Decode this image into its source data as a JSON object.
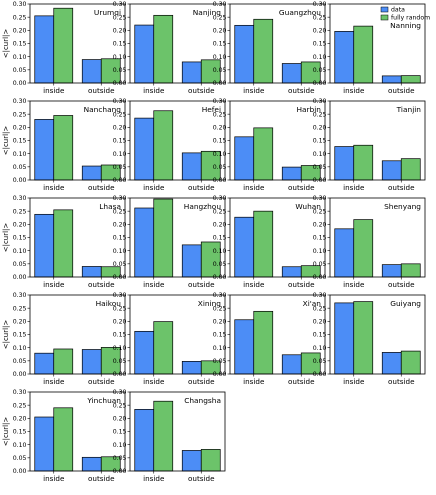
{
  "chart_data": {
    "type": "bar",
    "ylabel": "<|curl|>",
    "categories": [
      "inside",
      "outside"
    ],
    "series_names": [
      "data",
      "fully random"
    ],
    "colors": {
      "data": "#4C8DF6",
      "fully random": "#6CC36A"
    },
    "legend_location": "top-right of Nanning panel",
    "y_tick_label_columns": "left column only",
    "panels": [
      {
        "title": "Urumqi",
        "ylim": [
          0,
          0.3
        ],
        "yticks": [
          "0.00",
          "0.05",
          "0.10",
          "0.15",
          "0.20",
          "0.25",
          "0.30"
        ],
        "data": [
          0.255,
          0.089
        ],
        "fully_random": [
          0.284,
          0.092
        ]
      },
      {
        "title": "Nanjing",
        "ylim": [
          0,
          0.3
        ],
        "yticks": [
          "0.00",
          "0.05",
          "0.10",
          "0.15",
          "0.20",
          "0.25",
          "0.30"
        ],
        "data": [
          0.22,
          0.08
        ],
        "fully_random": [
          0.257,
          0.088
        ]
      },
      {
        "title": "Guangzhou",
        "ylim": [
          0,
          0.3
        ],
        "yticks": [
          "0.00",
          "0.05",
          "0.10",
          "0.15",
          "0.20",
          "0.25",
          "0.30"
        ],
        "data": [
          0.219,
          0.074
        ],
        "fully_random": [
          0.242,
          0.08
        ]
      },
      {
        "title": "Nanning",
        "ylim": [
          0,
          0.3
        ],
        "yticks": [
          "0.00",
          "0.05",
          "0.10",
          "0.15",
          "0.20",
          "0.25",
          "0.30"
        ],
        "data": [
          0.196,
          0.027
        ],
        "fully_random": [
          0.216,
          0.028
        ],
        "legend": true
      },
      {
        "title": "Nanchang",
        "ylim": [
          0,
          0.3
        ],
        "yticks": [
          "0.00",
          "0.05",
          "0.10",
          "0.15",
          "0.20",
          "0.25",
          "0.30"
        ],
        "data": [
          0.23,
          0.053
        ],
        "fully_random": [
          0.245,
          0.057
        ]
      },
      {
        "title": "Hefei",
        "ylim": [
          0,
          0.3
        ],
        "yticks": [
          "0.00",
          "0.05",
          "0.10",
          "0.15",
          "0.20",
          "0.25",
          "0.30"
        ],
        "data": [
          0.235,
          0.103
        ],
        "fully_random": [
          0.263,
          0.109
        ]
      },
      {
        "title": "Harbin",
        "ylim": [
          0,
          0.3
        ],
        "yticks": [
          "0.00",
          "0.05",
          "0.10",
          "0.15",
          "0.20",
          "0.25",
          "0.30"
        ],
        "data": [
          0.164,
          0.049
        ],
        "fully_random": [
          0.198,
          0.055
        ]
      },
      {
        "title": "Tianjin",
        "ylim": [
          0,
          0.3
        ],
        "yticks": [
          "0.00",
          "0.05",
          "0.10",
          "0.15",
          "0.20",
          "0.25",
          "0.30"
        ],
        "data": [
          0.127,
          0.073
        ],
        "fully_random": [
          0.132,
          0.081
        ]
      },
      {
        "title": "Lhasa",
        "ylim": [
          0,
          0.3
        ],
        "yticks": [
          "0.00",
          "0.05",
          "0.10",
          "0.15",
          "0.20",
          "0.25",
          "0.30"
        ],
        "data": [
          0.238,
          0.04
        ],
        "fully_random": [
          0.255,
          0.039
        ]
      },
      {
        "title": "Hangzhou",
        "ylim": [
          0,
          0.3
        ],
        "yticks": [
          "0.00",
          "0.05",
          "0.10",
          "0.15",
          "0.20",
          "0.25",
          "0.30"
        ],
        "data": [
          0.262,
          0.122
        ],
        "fully_random": [
          0.296,
          0.133
        ]
      },
      {
        "title": "Wuhan",
        "ylim": [
          0,
          0.3
        ],
        "yticks": [
          "0.00",
          "0.05",
          "0.10",
          "0.15",
          "0.20",
          "0.25",
          "0.30"
        ],
        "data": [
          0.227,
          0.039
        ],
        "fully_random": [
          0.25,
          0.043
        ]
      },
      {
        "title": "Shenyang",
        "ylim": [
          0,
          0.3
        ],
        "yticks": [
          "0.00",
          "0.05",
          "0.10",
          "0.15",
          "0.20",
          "0.25",
          "0.30"
        ],
        "data": [
          0.183,
          0.047
        ],
        "fully_random": [
          0.218,
          0.05
        ]
      },
      {
        "title": "Haikou",
        "ylim": [
          0,
          0.3
        ],
        "yticks": [
          "0.00",
          "0.05",
          "0.10",
          "0.15",
          "0.20",
          "0.25",
          "0.30"
        ],
        "data": [
          0.079,
          0.093
        ],
        "fully_random": [
          0.095,
          0.101
        ]
      },
      {
        "title": "Xining",
        "ylim": [
          0,
          0.3
        ],
        "yticks": [
          "0.00",
          "0.05",
          "0.10",
          "0.15",
          "0.20",
          "0.25",
          "0.30"
        ],
        "data": [
          0.162,
          0.048
        ],
        "fully_random": [
          0.199,
          0.05
        ]
      },
      {
        "title": "Xi'an",
        "ylim": [
          0,
          0.3
        ],
        "yticks": [
          "0.00",
          "0.05",
          "0.10",
          "0.15",
          "0.20",
          "0.25",
          "0.30"
        ],
        "data": [
          0.206,
          0.073
        ],
        "fully_random": [
          0.238,
          0.08
        ]
      },
      {
        "title": "Guiyang",
        "ylim": [
          0,
          0.3
        ],
        "yticks": [
          "0.00",
          "0.05",
          "0.10",
          "0.15",
          "0.20",
          "0.25",
          "0.30"
        ],
        "data": [
          0.27,
          0.082
        ],
        "fully_random": [
          0.275,
          0.087
        ]
      },
      {
        "title": "Yinchuan",
        "ylim": [
          0,
          0.3
        ],
        "yticks": [
          "0.00",
          "0.05",
          "0.10",
          "0.15",
          "0.20",
          "0.25",
          "0.30"
        ],
        "data": [
          0.205,
          0.052
        ],
        "fully_random": [
          0.24,
          0.054
        ]
      },
      {
        "title": "Changsha",
        "ylim": [
          0,
          0.3
        ],
        "yticks": [
          "0.00",
          "0.05",
          "0.10",
          "0.15",
          "0.20",
          "0.25",
          "0.30"
        ],
        "data": [
          0.234,
          0.078
        ],
        "fully_random": [
          0.265,
          0.082
        ]
      }
    ]
  }
}
